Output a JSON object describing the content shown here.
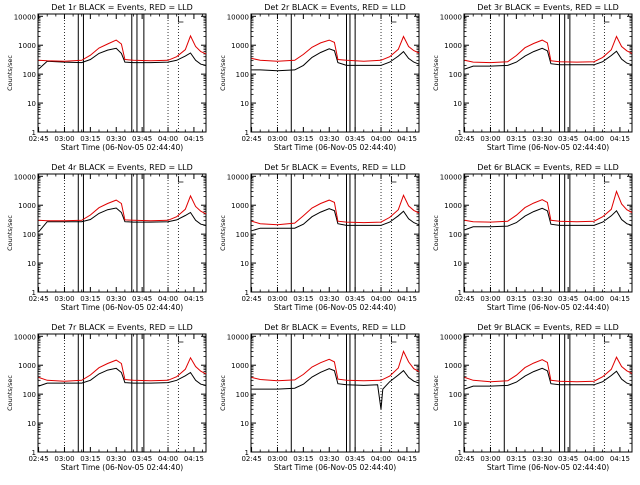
{
  "colors": {
    "events": "#000000",
    "lld": "#e00000",
    "axis": "#000000"
  },
  "shared": {
    "xlabel": "Start Time (06-Nov-05 02:44:40)",
    "ylabel": "Counts/sec",
    "x_tick_labels": [
      "02:45",
      "03:00",
      "03:15",
      "03:30",
      "03:45",
      "04:00",
      "04:15"
    ],
    "y_tick_labels": [
      "1",
      "10",
      "100",
      "1000",
      "10000"
    ]
  },
  "chart_data": [
    {
      "type": "line",
      "title": "Det 1r BLACK = Events, RED = LLD",
      "xlim": [
        "02:44:40",
        "04:22:00"
      ],
      "ylim": [
        1,
        12000
      ],
      "yscale": "log",
      "vlines_solid": [
        "03:08",
        "03:11",
        "03:39",
        "03:42",
        "03:46"
      ],
      "vlines_dotted": [
        "03:00",
        "04:00",
        "04:06"
      ],
      "series": [
        {
          "name": "Events",
          "x": [
            "02:45",
            "02:50",
            "03:00",
            "03:10",
            "03:15",
            "03:20",
            "03:25",
            "03:30",
            "03:33",
            "03:35",
            "03:40",
            "03:50",
            "04:00",
            "04:05",
            "04:10",
            "04:13",
            "04:16",
            "04:19",
            "04:22"
          ],
          "values": [
            150,
            280,
            260,
            250,
            320,
            520,
            680,
            780,
            520,
            260,
            250,
            250,
            260,
            300,
            420,
            540,
            300,
            220,
            200
          ]
        },
        {
          "name": "LLD",
          "x": [
            "02:45",
            "02:50",
            "03:00",
            "03:10",
            "03:15",
            "03:20",
            "03:25",
            "03:30",
            "03:33",
            "03:35",
            "03:40",
            "03:50",
            "04:00",
            "04:05",
            "04:10",
            "04:13",
            "04:16",
            "04:19",
            "04:22"
          ],
          "values": [
            300,
            290,
            280,
            300,
            450,
            800,
            1100,
            1500,
            1100,
            320,
            300,
            290,
            300,
            400,
            700,
            2100,
            900,
            600,
            500
          ]
        }
      ]
    },
    {
      "type": "line",
      "title": "Det 2r BLACK = Events, RED = LLD",
      "xlim": [
        "02:44:40",
        "04:22:00"
      ],
      "ylim": [
        1,
        12000
      ],
      "yscale": "log",
      "vlines_solid": [
        "03:08",
        "03:40",
        "03:42",
        "03:45"
      ],
      "vlines_dotted": [
        "03:00",
        "04:00",
        "04:06"
      ],
      "series": [
        {
          "name": "Events",
          "x": [
            "02:45",
            "02:50",
            "03:00",
            "03:10",
            "03:15",
            "03:20",
            "03:25",
            "03:30",
            "03:33",
            "03:35",
            "03:40",
            "03:50",
            "04:00",
            "04:05",
            "04:10",
            "04:13",
            "04:16",
            "04:19",
            "04:22"
          ],
          "values": [
            140,
            140,
            130,
            140,
            200,
            380,
            560,
            750,
            650,
            250,
            200,
            200,
            200,
            260,
            420,
            600,
            350,
            260,
            220
          ]
        },
        {
          "name": "LLD",
          "x": [
            "02:45",
            "02:50",
            "03:00",
            "03:10",
            "03:15",
            "03:20",
            "03:25",
            "03:30",
            "03:33",
            "03:35",
            "03:40",
            "03:50",
            "04:00",
            "04:05",
            "04:10",
            "04:13",
            "04:16",
            "04:19",
            "04:22"
          ],
          "values": [
            350,
            300,
            280,
            300,
            480,
            850,
            1200,
            1500,
            1250,
            320,
            300,
            280,
            300,
            400,
            720,
            2000,
            900,
            650,
            540
          ]
        }
      ]
    },
    {
      "type": "line",
      "title": "Det 3r BLACK = Events, RED = LLD",
      "xlim": [
        "02:44:40",
        "04:22:00"
      ],
      "ylim": [
        1,
        12000
      ],
      "yscale": "log",
      "vlines_solid": [
        "03:08",
        "03:40",
        "03:43",
        "03:46"
      ],
      "vlines_dotted": [
        "03:00",
        "04:00",
        "04:06"
      ],
      "series": [
        {
          "name": "Events",
          "x": [
            "02:45",
            "02:50",
            "03:00",
            "03:10",
            "03:15",
            "03:20",
            "03:25",
            "03:30",
            "03:33",
            "03:35",
            "03:40",
            "03:50",
            "04:00",
            "04:05",
            "04:10",
            "04:13",
            "04:16",
            "04:19",
            "04:22"
          ],
          "values": [
            150,
            190,
            190,
            200,
            260,
            420,
            600,
            780,
            640,
            230,
            210,
            210,
            210,
            270,
            440,
            620,
            330,
            240,
            210
          ]
        },
        {
          "name": "LLD",
          "x": [
            "02:45",
            "02:50",
            "03:00",
            "03:10",
            "03:15",
            "03:20",
            "03:25",
            "03:30",
            "03:33",
            "03:35",
            "03:40",
            "03:50",
            "04:00",
            "04:05",
            "04:10",
            "04:13",
            "04:16",
            "04:19",
            "04:22"
          ],
          "values": [
            300,
            260,
            250,
            270,
            440,
            820,
            1150,
            1500,
            1200,
            290,
            270,
            260,
            270,
            380,
            700,
            2000,
            900,
            640,
            520
          ]
        }
      ]
    },
    {
      "type": "line",
      "title": "Det 4r BLACK = Events, RED = LLD",
      "xlim": [
        "02:44:40",
        "04:22:00"
      ],
      "ylim": [
        1,
        12000
      ],
      "yscale": "log",
      "vlines_solid": [
        "03:08",
        "03:11",
        "03:39",
        "03:42",
        "03:46"
      ],
      "vlines_dotted": [
        "03:00",
        "04:00",
        "04:06"
      ],
      "series": [
        {
          "name": "Events",
          "x": [
            "02:45",
            "02:50",
            "03:00",
            "03:10",
            "03:15",
            "03:20",
            "03:25",
            "03:30",
            "03:33",
            "03:35",
            "03:40",
            "03:50",
            "04:00",
            "04:05",
            "04:10",
            "04:13",
            "04:16",
            "04:19",
            "04:22"
          ],
          "values": [
            120,
            270,
            270,
            270,
            320,
            520,
            700,
            800,
            560,
            270,
            260,
            260,
            270,
            310,
            440,
            560,
            300,
            220,
            200
          ]
        },
        {
          "name": "LLD",
          "x": [
            "02:45",
            "02:50",
            "03:00",
            "03:10",
            "03:15",
            "03:20",
            "03:25",
            "03:30",
            "03:33",
            "03:35",
            "03:40",
            "03:50",
            "04:00",
            "04:05",
            "04:10",
            "04:13",
            "04:16",
            "04:19",
            "04:22"
          ],
          "values": [
            300,
            290,
            290,
            300,
            460,
            820,
            1150,
            1500,
            1150,
            310,
            300,
            290,
            300,
            400,
            720,
            2100,
            900,
            620,
            500
          ]
        }
      ]
    },
    {
      "type": "line",
      "title": "Det 5r BLACK = Events, RED = LLD",
      "xlim": [
        "02:44:40",
        "04:22:00"
      ],
      "ylim": [
        1,
        12000
      ],
      "yscale": "log",
      "vlines_solid": [
        "03:08",
        "03:40",
        "03:42",
        "03:45"
      ],
      "vlines_dotted": [
        "03:00",
        "04:00",
        "04:06"
      ],
      "series": [
        {
          "name": "Events",
          "x": [
            "02:45",
            "02:50",
            "03:00",
            "03:10",
            "03:15",
            "03:20",
            "03:25",
            "03:30",
            "03:33",
            "03:35",
            "03:40",
            "03:50",
            "04:00",
            "04:05",
            "04:10",
            "04:13",
            "04:16",
            "04:19",
            "04:22"
          ],
          "values": [
            130,
            160,
            160,
            160,
            220,
            400,
            580,
            760,
            650,
            230,
            200,
            200,
            200,
            260,
            430,
            620,
            340,
            250,
            210
          ]
        },
        {
          "name": "LLD",
          "x": [
            "02:45",
            "02:50",
            "03:00",
            "03:10",
            "03:15",
            "03:20",
            "03:25",
            "03:30",
            "03:33",
            "03:35",
            "03:40",
            "03:50",
            "04:00",
            "04:05",
            "04:10",
            "04:13",
            "04:16",
            "04:19",
            "04:22"
          ],
          "values": [
            280,
            230,
            210,
            240,
            430,
            800,
            1150,
            1500,
            1250,
            280,
            260,
            250,
            260,
            380,
            700,
            2200,
            950,
            660,
            540
          ]
        }
      ]
    },
    {
      "type": "line",
      "title": "Det 6r BLACK = Events, RED = LLD",
      "xlim": [
        "02:44:40",
        "04:22:00"
      ],
      "ylim": [
        1,
        12000
      ],
      "yscale": "log",
      "vlines_solid": [
        "03:08",
        "03:40",
        "03:43",
        "03:46"
      ],
      "vlines_dotted": [
        "03:00",
        "04:00",
        "04:06"
      ],
      "series": [
        {
          "name": "Events",
          "x": [
            "02:45",
            "02:50",
            "03:00",
            "03:10",
            "03:15",
            "03:20",
            "03:25",
            "03:30",
            "03:33",
            "03:35",
            "03:40",
            "03:50",
            "04:00",
            "04:05",
            "04:10",
            "04:13",
            "04:16",
            "04:19",
            "04:22"
          ],
          "values": [
            140,
            180,
            180,
            190,
            250,
            420,
            600,
            780,
            640,
            220,
            200,
            200,
            200,
            260,
            430,
            640,
            320,
            230,
            200
          ]
        },
        {
          "name": "LLD",
          "x": [
            "02:45",
            "02:50",
            "03:00",
            "03:10",
            "03:15",
            "03:20",
            "03:25",
            "03:30",
            "03:33",
            "03:35",
            "03:40",
            "03:50",
            "04:00",
            "04:05",
            "04:10",
            "04:13",
            "04:16",
            "04:19",
            "04:22"
          ],
          "values": [
            300,
            270,
            260,
            280,
            450,
            830,
            1180,
            1550,
            1250,
            300,
            280,
            270,
            280,
            400,
            720,
            3000,
            1100,
            700,
            560
          ]
        }
      ]
    },
    {
      "type": "line",
      "title": "Det 7r BLACK = Events, RED = LLD",
      "xlim": [
        "02:44:40",
        "04:22:00"
      ],
      "ylim": [
        1,
        12000
      ],
      "yscale": "log",
      "vlines_solid": [
        "03:08",
        "03:11",
        "03:39",
        "03:42",
        "03:46"
      ],
      "vlines_dotted": [
        "03:00",
        "04:00",
        "04:06"
      ],
      "series": [
        {
          "name": "Events",
          "x": [
            "02:45",
            "02:50",
            "03:00",
            "03:10",
            "03:15",
            "03:20",
            "03:25",
            "03:30",
            "03:33",
            "03:35",
            "03:40",
            "03:50",
            "04:00",
            "04:05",
            "04:10",
            "04:13",
            "04:16",
            "04:19",
            "04:22"
          ],
          "values": [
            190,
            240,
            240,
            240,
            300,
            500,
            680,
            780,
            560,
            250,
            240,
            240,
            250,
            300,
            430,
            560,
            300,
            220,
            200
          ]
        },
        {
          "name": "LLD",
          "x": [
            "02:45",
            "02:50",
            "03:00",
            "03:10",
            "03:15",
            "03:20",
            "03:25",
            "03:30",
            "03:33",
            "03:35",
            "03:40",
            "03:50",
            "04:00",
            "04:05",
            "04:10",
            "04:13",
            "04:16",
            "04:19",
            "04:22"
          ],
          "values": [
            380,
            300,
            280,
            300,
            460,
            820,
            1150,
            1500,
            1150,
            320,
            300,
            290,
            300,
            400,
            720,
            1800,
            900,
            620,
            500
          ]
        }
      ]
    },
    {
      "type": "line",
      "title": "Det 8r BLACK = Events, RED = LLD",
      "xlim": [
        "02:44:40",
        "04:22:00"
      ],
      "ylim": [
        1,
        12000
      ],
      "yscale": "log",
      "vlines_solid": [
        "03:08",
        "03:40",
        "03:42",
        "03:45"
      ],
      "vlines_dotted": [
        "03:00",
        "04:00",
        "04:06"
      ],
      "series": [
        {
          "name": "Events",
          "x": [
            "02:45",
            "02:50",
            "03:00",
            "03:10",
            "03:15",
            "03:20",
            "03:25",
            "03:30",
            "03:33",
            "03:35",
            "03:40",
            "03:50",
            "03:58",
            "04:00",
            "04:01",
            "04:05",
            "04:10",
            "04:13",
            "04:16",
            "04:19",
            "04:22"
          ],
          "values": [
            150,
            150,
            150,
            160,
            220,
            390,
            570,
            760,
            650,
            230,
            210,
            200,
            210,
            30,
            150,
            270,
            460,
            650,
            380,
            280,
            240
          ]
        },
        {
          "name": "LLD",
          "x": [
            "02:45",
            "02:50",
            "03:00",
            "03:10",
            "03:15",
            "03:20",
            "03:25",
            "03:30",
            "03:33",
            "03:35",
            "03:40",
            "03:50",
            "04:00",
            "04:05",
            "04:10",
            "04:13",
            "04:16",
            "04:19",
            "04:22"
          ],
          "values": [
            380,
            320,
            290,
            310,
            480,
            870,
            1220,
            1600,
            1300,
            330,
            300,
            290,
            300,
            420,
            800,
            3000,
            1300,
            760,
            600
          ]
        }
      ]
    },
    {
      "type": "line",
      "title": "Det 9r BLACK = Events, RED = LLD",
      "xlim": [
        "02:44:40",
        "04:22:00"
      ],
      "ylim": [
        1,
        12000
      ],
      "yscale": "log",
      "vlines_solid": [
        "03:08",
        "03:40",
        "03:43",
        "03:46"
      ],
      "vlines_dotted": [
        "03:00",
        "04:00",
        "04:06"
      ],
      "series": [
        {
          "name": "Events",
          "x": [
            "02:45",
            "02:50",
            "03:00",
            "03:10",
            "03:15",
            "03:20",
            "03:25",
            "03:30",
            "03:33",
            "03:35",
            "03:40",
            "03:50",
            "04:00",
            "04:05",
            "04:10",
            "04:13",
            "04:16",
            "04:19",
            "04:22"
          ],
          "values": [
            150,
            190,
            190,
            200,
            260,
            420,
            600,
            780,
            640,
            230,
            210,
            210,
            210,
            270,
            440,
            620,
            330,
            240,
            210
          ]
        },
        {
          "name": "LLD",
          "x": [
            "02:45",
            "02:50",
            "03:00",
            "03:10",
            "03:15",
            "03:20",
            "03:25",
            "03:30",
            "03:33",
            "03:35",
            "03:40",
            "03:50",
            "04:00",
            "04:05",
            "04:10",
            "04:13",
            "04:16",
            "04:19",
            "04:22"
          ],
          "values": [
            380,
            300,
            270,
            290,
            450,
            830,
            1180,
            1550,
            1250,
            300,
            280,
            270,
            280,
            400,
            720,
            1900,
            900,
            640,
            520
          ]
        }
      ]
    }
  ]
}
